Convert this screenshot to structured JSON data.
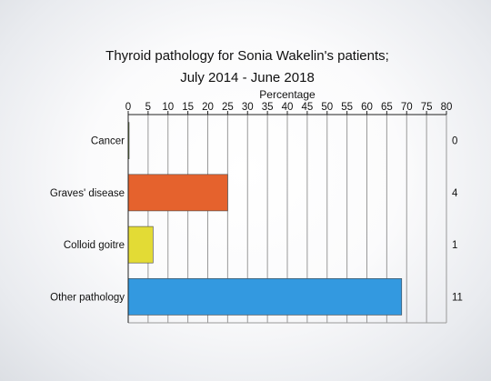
{
  "chart_data": {
    "type": "bar",
    "orientation": "horizontal",
    "title_line1": "Thyroid pathology for Sonia Wakelin's patients;",
    "title_line2": "July 2014 - June 2018",
    "xlabel": "Percentage",
    "x_axis_position": "top",
    "xlim": [
      0,
      80
    ],
    "x_ticks": [
      0,
      5,
      10,
      15,
      20,
      25,
      30,
      35,
      40,
      45,
      50,
      55,
      60,
      65,
      70,
      75,
      80
    ],
    "grid": true,
    "categories": [
      "Cancer",
      "Graves' disease",
      "Colloid goitre",
      "Other pathology"
    ],
    "values": [
      0,
      25,
      6.25,
      68.75
    ],
    "counts": [
      "0",
      "4",
      "1",
      "11"
    ],
    "colors": [
      "#8cc63f",
      "#e5622d",
      "#e3db35",
      "#3399e0"
    ]
  }
}
